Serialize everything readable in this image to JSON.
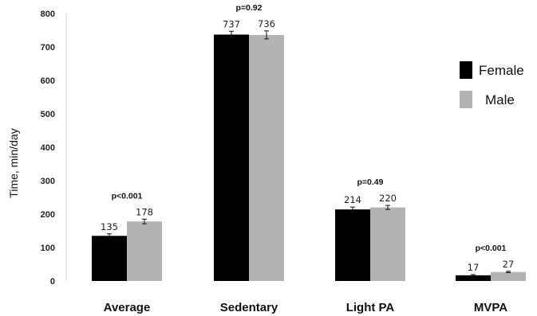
{
  "chart_data": {
    "type": "bar",
    "categories": [
      "Average",
      "Sedentary",
      "Light PA",
      "MVPA"
    ],
    "series": [
      {
        "name": "Female",
        "values": [
          135,
          737,
          214,
          17
        ],
        "errors": [
          6,
          10,
          7,
          2
        ],
        "color": "#000000"
      },
      {
        "name": "Male",
        "values": [
          178,
          736,
          220,
          27
        ],
        "errors": [
          7,
          12,
          6,
          2
        ],
        "color": "#b3b3b3"
      }
    ],
    "value_labels": [
      [
        "135",
        "737",
        "214",
        "17"
      ],
      [
        "178",
        "736",
        "220",
        "27"
      ]
    ],
    "p_values": [
      "p<0.001",
      "p=0.92",
      "p=0.49",
      "p<0.001"
    ],
    "yticks": [
      0,
      100,
      200,
      300,
      400,
      500,
      600,
      700,
      800
    ],
    "ylim": [
      0,
      800
    ],
    "ylabel": "Time, min/day",
    "xlabel": "",
    "legend": [
      "Female",
      "Male"
    ],
    "legend_position": "right",
    "grid": false
  }
}
